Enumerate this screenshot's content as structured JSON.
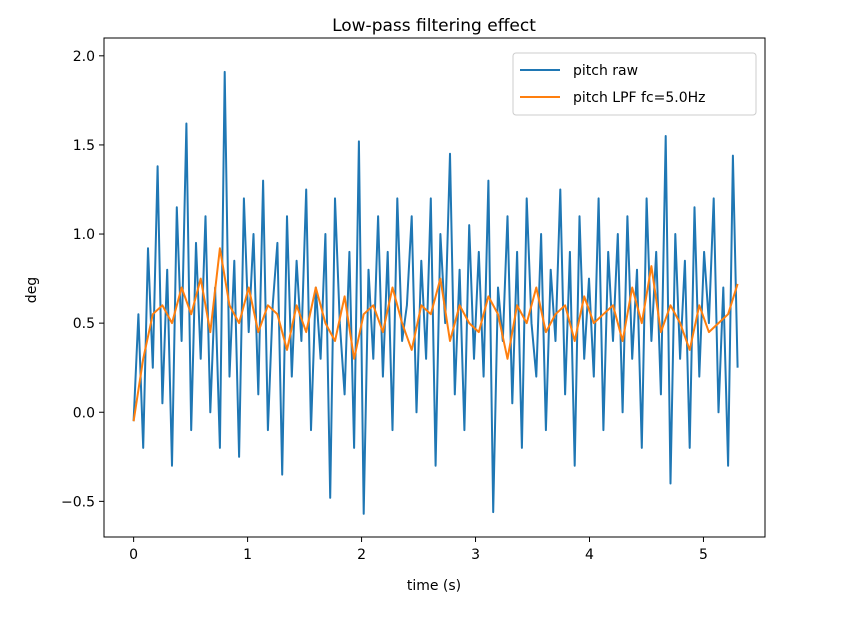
{
  "chart_data": {
    "type": "line",
    "title": "Low-pass filtering effect",
    "xlabel": "time (s)",
    "ylabel": "deg",
    "xlim": [
      -0.26,
      5.54
    ],
    "ylim": [
      -0.7,
      2.1
    ],
    "xticks": [
      0,
      1,
      2,
      3,
      4,
      5
    ],
    "xtick_labels": [
      "0",
      "1",
      "2",
      "3",
      "4",
      "5"
    ],
    "yticks": [
      -0.5,
      0.0,
      0.5,
      1.0,
      1.5,
      2.0
    ],
    "ytick_labels": [
      "−0.5",
      "0.0",
      "0.5",
      "1.0",
      "1.5",
      "2.0"
    ],
    "grid": false,
    "legend_position": "top-right",
    "series": [
      {
        "name": "pitch raw",
        "color": "#1f77b4",
        "t_start": 0,
        "t_end": 5.3,
        "values": [
          -0.05,
          0.55,
          -0.2,
          0.92,
          0.25,
          1.38,
          0.05,
          0.8,
          -0.3,
          1.15,
          0.4,
          1.62,
          -0.1,
          0.95,
          0.3,
          1.1,
          0.0,
          0.7,
          -0.2,
          1.91,
          0.2,
          0.85,
          -0.25,
          1.2,
          0.45,
          1.0,
          0.1,
          1.3,
          -0.1,
          0.6,
          0.95,
          -0.35,
          1.1,
          0.2,
          0.85,
          0.4,
          1.25,
          -0.1,
          0.7,
          0.3,
          1.0,
          -0.48,
          1.2,
          0.5,
          0.1,
          0.9,
          -0.2,
          1.52,
          -0.57,
          0.8,
          0.3,
          1.1,
          0.2,
          0.9,
          -0.1,
          1.2,
          0.4,
          0.6,
          1.1,
          0.0,
          0.85,
          0.3,
          1.2,
          -0.3,
          1.0,
          0.5,
          1.45,
          0.1,
          0.8,
          -0.1,
          1.05,
          0.3,
          0.9,
          0.2,
          1.3,
          -0.56,
          0.7,
          0.4,
          1.1,
          0.05,
          0.9,
          -0.2,
          1.2,
          0.5,
          0.2,
          1.0,
          -0.1,
          0.8,
          0.4,
          1.25,
          0.1,
          0.9,
          -0.3,
          1.1,
          0.3,
          0.75,
          0.2,
          1.2,
          -0.1,
          0.9,
          0.4,
          1.0,
          0.0,
          1.1,
          0.3,
          0.8,
          -0.2,
          1.2,
          0.4,
          0.9,
          0.1,
          1.55,
          -0.4,
          1.0,
          0.3,
          0.85,
          -0.2,
          1.15,
          0.2,
          0.9,
          0.5,
          1.2,
          0.0,
          0.7,
          -0.3,
          1.44,
          0.25
        ]
      },
      {
        "name": "pitch LPF fc=5.0Hz",
        "color": "#ff7f0e",
        "t_start": 0,
        "t_end": 5.3,
        "values": [
          -0.05,
          0.3,
          0.55,
          0.6,
          0.5,
          0.7,
          0.55,
          0.75,
          0.45,
          0.92,
          0.6,
          0.5,
          0.7,
          0.45,
          0.6,
          0.55,
          0.35,
          0.6,
          0.45,
          0.7,
          0.5,
          0.4,
          0.65,
          0.3,
          0.55,
          0.6,
          0.45,
          0.7,
          0.5,
          0.35,
          0.6,
          0.55,
          0.75,
          0.4,
          0.6,
          0.5,
          0.45,
          0.65,
          0.55,
          0.3,
          0.6,
          0.5,
          0.7,
          0.45,
          0.55,
          0.6,
          0.4,
          0.65,
          0.5,
          0.55,
          0.6,
          0.4,
          0.7,
          0.5,
          0.82,
          0.45,
          0.6,
          0.5,
          0.35,
          0.6,
          0.45,
          0.5,
          0.55,
          0.72
        ]
      }
    ]
  }
}
